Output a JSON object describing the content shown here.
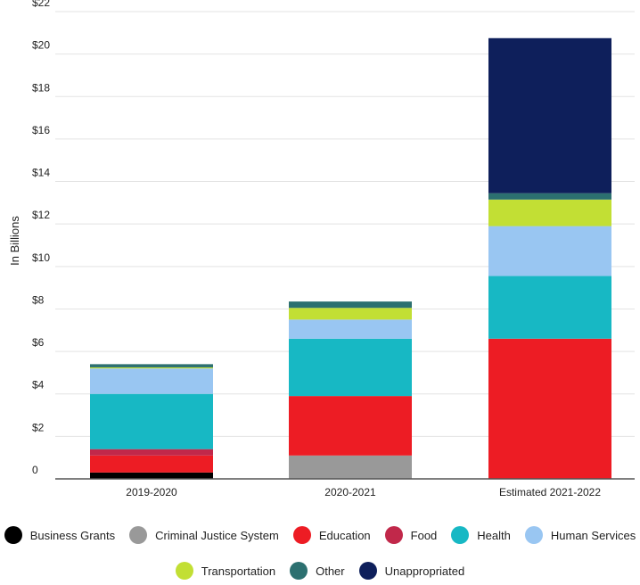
{
  "chart_data": {
    "type": "bar",
    "stacked": true,
    "ylabel": "In Billions",
    "ylim": [
      0,
      22
    ],
    "yticks": [
      {
        "value": 0,
        "label": "0"
      },
      {
        "value": 2,
        "label": "$2"
      },
      {
        "value": 4,
        "label": "$4"
      },
      {
        "value": 6,
        "label": "$6"
      },
      {
        "value": 8,
        "label": "$8"
      },
      {
        "value": 10,
        "label": "$10"
      },
      {
        "value": 12,
        "label": "$12"
      },
      {
        "value": 14,
        "label": "$14"
      },
      {
        "value": 16,
        "label": "$16"
      },
      {
        "value": 18,
        "label": "$18"
      },
      {
        "value": 20,
        "label": "$20"
      },
      {
        "value": 22,
        "label": "$22"
      }
    ],
    "grid": true,
    "legend_position": "bottom",
    "categories": [
      "2019-2020",
      "2020-2021",
      "Estimated 2021-2022"
    ],
    "series": [
      {
        "name": "Business Grants",
        "color": "#000000",
        "values": [
          0.3,
          0,
          0
        ]
      },
      {
        "name": "Criminal Justice System",
        "color": "#999999",
        "values": [
          0,
          1.1,
          0
        ]
      },
      {
        "name": "Education",
        "color": "#ed1c24",
        "values": [
          0.8,
          2.8,
          6.6
        ]
      },
      {
        "name": "Food",
        "color": "#c1284a",
        "values": [
          0.3,
          0,
          0
        ]
      },
      {
        "name": "Health",
        "color": "#17b8c4",
        "values": [
          2.6,
          2.7,
          2.95
        ]
      },
      {
        "name": "Human Services",
        "color": "#99c6f2",
        "values": [
          1.2,
          0.9,
          2.35
        ]
      },
      {
        "name": "Transportation",
        "color": "#c2df34",
        "values": [
          0.05,
          0.55,
          1.25
        ]
      },
      {
        "name": "Other",
        "color": "#2c7070",
        "values": [
          0.15,
          0.3,
          0.3
        ]
      },
      {
        "name": "Unappropriated",
        "color": "#0e1f5b",
        "values": [
          0,
          0,
          7.3
        ]
      }
    ]
  }
}
